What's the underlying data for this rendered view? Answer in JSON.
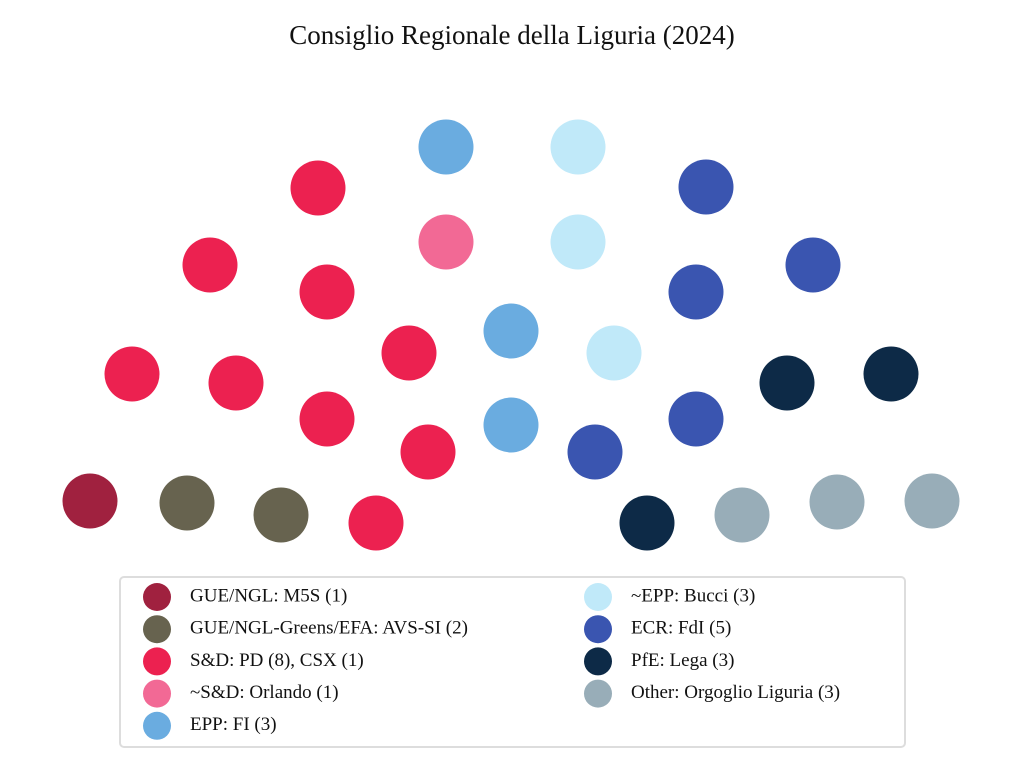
{
  "chart_data": {
    "type": "parliament",
    "title": "Consiglio Regionale della Liguria (2024)",
    "categories": [
      "GUE/NGL: M5S (1)",
      "GUE/NGL-Greens/EFA: AVS-SI (2)",
      "S&D: PD (8), CSX (1)",
      "~S&D: Orlando (1)",
      "EPP: FI (3)",
      "~EPP: Bucci (3)",
      "ECR: FdI (5)",
      "PfE: Lega (3)",
      "Other: Orgoglio Liguria (3)"
    ],
    "values": [
      1,
      2,
      9,
      1,
      3,
      3,
      5,
      3,
      3
    ],
    "colors": [
      "#a0213f",
      "#67634f",
      "#ec2150",
      "#f26995",
      "#6aace0",
      "#c0e9f9",
      "#3a55b0",
      "#0d2a47",
      "#98adb8"
    ],
    "legend": "bottom"
  }
}
